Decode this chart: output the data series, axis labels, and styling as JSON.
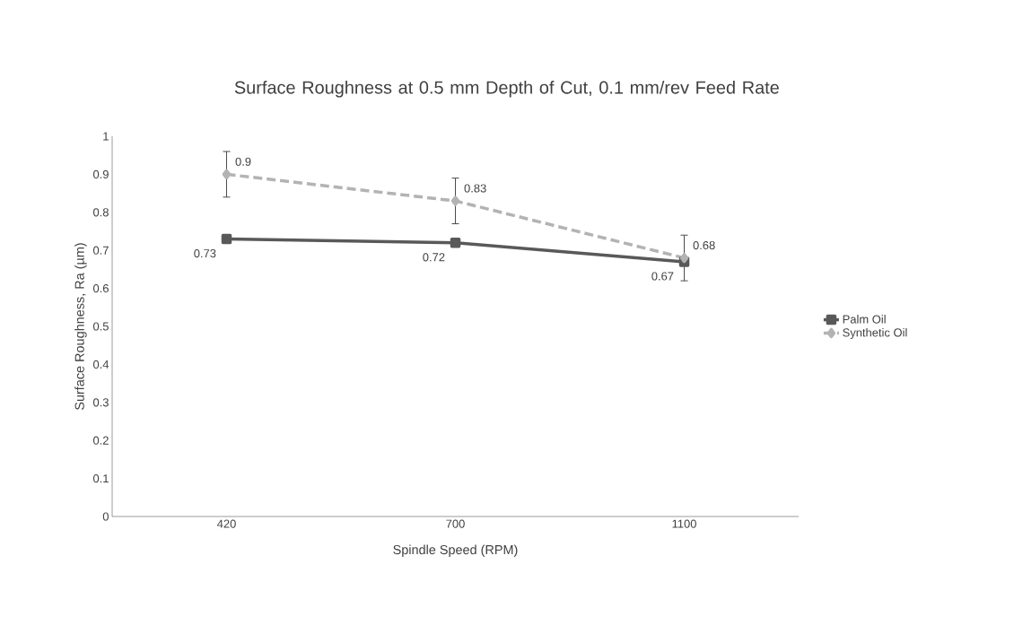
{
  "chart_data": {
    "type": "line",
    "title": "Surface Roughness at 0.5 mm Depth of Cut, 0.1 mm/rev Feed Rate",
    "xlabel": "Spindle Speed (RPM)",
    "ylabel": "Surface Roughness, Ra (µm)",
    "categories": [
      "420",
      "700",
      "1100"
    ],
    "series": [
      {
        "name": "Palm Oil",
        "color": "#595959",
        "values": [
          0.73,
          0.72,
          0.67
        ],
        "marker": "square",
        "line_style": "solid"
      },
      {
        "name": "Synthetic Oil",
        "color": "#b3b3b3",
        "values": [
          0.9,
          0.83,
          0.68
        ],
        "marker": "diamond",
        "line_style": "dashed",
        "errors": [
          0.06,
          0.06,
          0.06
        ]
      }
    ],
    "ylim": [
      0,
      1
    ],
    "yticks": [
      0,
      0.1,
      0.2,
      0.3,
      0.4,
      0.5,
      0.6,
      0.7,
      0.8,
      0.9,
      1
    ],
    "grid": false,
    "legend": "right",
    "data_labels": true
  }
}
